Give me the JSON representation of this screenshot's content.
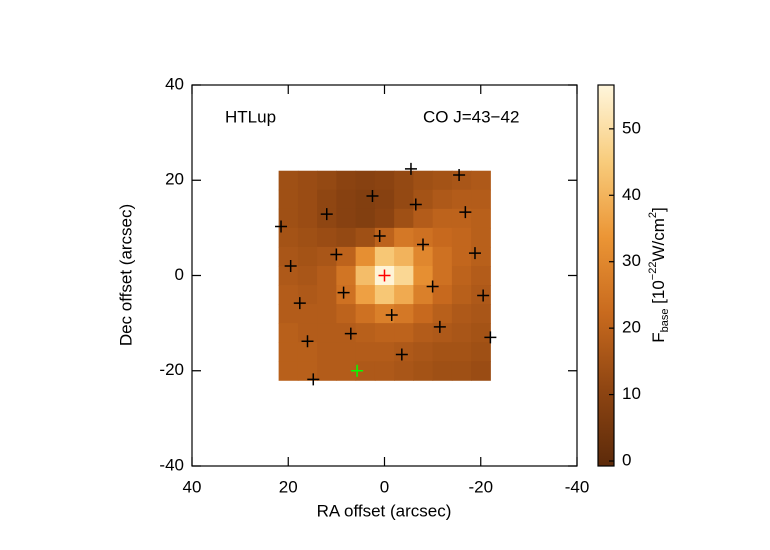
{
  "chart_data": {
    "type": "heatmap",
    "annotations": [
      "HTLup",
      "CO J=43−42"
    ],
    "xlabel": "RA offset (arcsec)",
    "ylabel": "Dec offset (arcsec)",
    "colorbar_label": [
      "F",
      "base",
      " [10",
      "−22",
      "W/cm",
      "2",
      "]"
    ],
    "xlim": [
      40,
      -40
    ],
    "xticks": [
      40,
      20,
      0,
      -20,
      -40
    ],
    "ylim": [
      -40,
      40
    ],
    "yticks": [
      -40,
      -20,
      0,
      20,
      40
    ],
    "clim": [
      -0.75,
      56.6
    ],
    "cticks": [
      0,
      10,
      20,
      30,
      40,
      50
    ],
    "colormap": [
      "#5c2a0a",
      "#8e4512",
      "#c86a1e",
      "#eb9535",
      "#f8cc7c",
      "#fff6dc"
    ],
    "x": [
      20,
      16,
      12,
      8,
      4,
      0,
      -4,
      -8,
      -12,
      -16,
      -20
    ],
    "y": [
      20,
      16,
      12,
      8,
      4,
      0,
      -4,
      -8,
      -12,
      -16,
      -20
    ],
    "z": [
      [
        14,
        13,
        12,
        10,
        9,
        10,
        12,
        14,
        15,
        16,
        17
      ],
      [
        14,
        13,
        11,
        9,
        8,
        9,
        12,
        15,
        17,
        18,
        18
      ],
      [
        14,
        13,
        11,
        9,
        8,
        10,
        14,
        18,
        20,
        20,
        19
      ],
      [
        15,
        14,
        13,
        12,
        14,
        20,
        26,
        24,
        22,
        21,
        19
      ],
      [
        16,
        15,
        16,
        20,
        32,
        44,
        40,
        30,
        24,
        21,
        19
      ],
      [
        17,
        16,
        18,
        25,
        42,
        56,
        48,
        32,
        24,
        20,
        18
      ],
      [
        18,
        17,
        18,
        24,
        36,
        44,
        38,
        28,
        22,
        19,
        17
      ],
      [
        18,
        18,
        18,
        20,
        24,
        28,
        26,
        22,
        19,
        17,
        16
      ],
      [
        19,
        18,
        18,
        18,
        19,
        20,
        20,
        18,
        17,
        16,
        15
      ],
      [
        19,
        19,
        18,
        18,
        18,
        18,
        17,
        16,
        15,
        15,
        14
      ],
      [
        19,
        19,
        18,
        18,
        17,
        17,
        16,
        15,
        14,
        14,
        13
      ]
    ],
    "series": [
      {
        "color": "#000000",
        "x": [
          21.5,
          19.5,
          17.6,
          16,
          14.8,
          12,
          10,
          8.5,
          7,
          2.5,
          1,
          -1.5,
          -3.6,
          -5.5,
          -6.5,
          -8,
          -10,
          -11.5,
          -15.5,
          -16.8,
          -18.8,
          -20.5,
          -22
        ],
        "y": [
          10.3,
          2,
          -5.8,
          -13.8,
          -21.8,
          12.9,
          4.4,
          -3.6,
          -12.2,
          16.7,
          8.3,
          -8.3,
          -16.6,
          22.4,
          14.9,
          6.5,
          -2.3,
          -10.8,
          21.1,
          13.3,
          4.7,
          -4.2,
          -13
        ]
      },
      {
        "color": "#ff0000",
        "x": [
          0
        ],
        "y": [
          0
        ]
      },
      {
        "color": "#00ff00",
        "x": [
          5.7
        ],
        "y": [
          -20
        ]
      }
    ]
  }
}
